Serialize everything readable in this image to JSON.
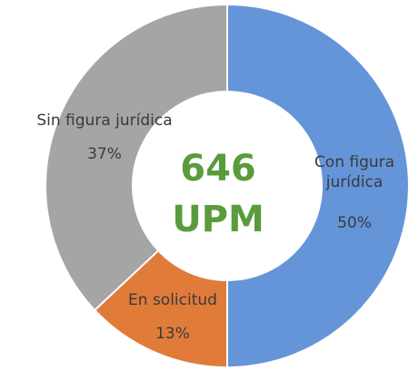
{
  "chart_data": {
    "type": "donut",
    "center_text": [
      "646",
      "UPM"
    ],
    "categories": [
      "Con figura jurídica",
      "En solicitud",
      "Sin figura jurídica"
    ],
    "values": [
      50,
      13,
      37
    ],
    "value_labels": [
      "50%",
      "13%",
      "37%"
    ],
    "colors": [
      "#6495d8",
      "#e07b3a",
      "#a5a5a5"
    ]
  }
}
